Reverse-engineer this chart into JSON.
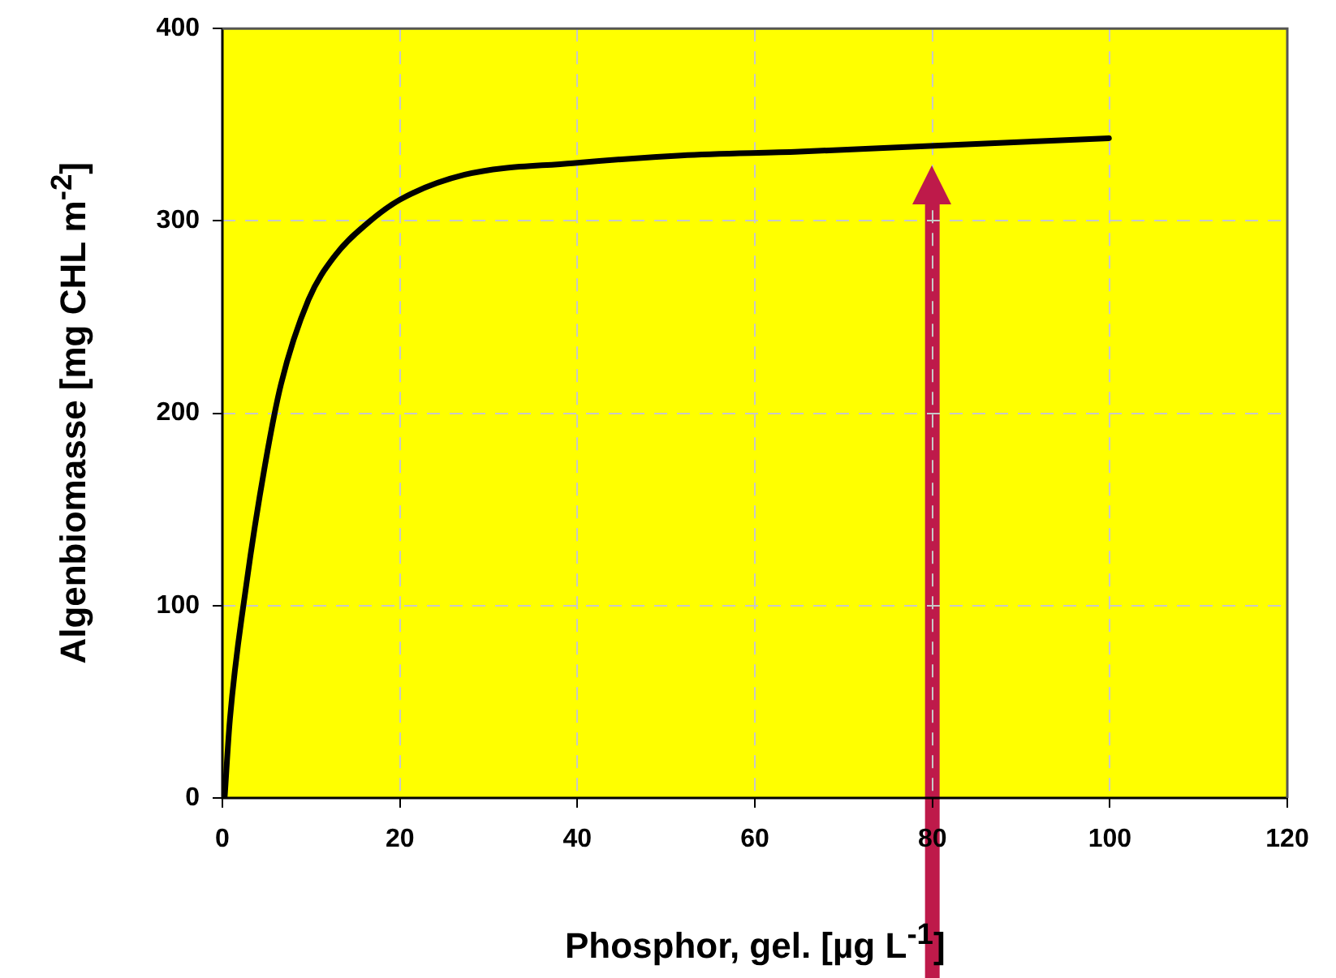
{
  "chart_data": {
    "type": "line",
    "xlabel": "Phosphor, gel. [µg L$^{-1}$]",
    "ylabel": "Algenbiomasse [mg CHL m$^{-2}$]",
    "xlim": [
      0,
      120
    ],
    "xticks": [
      0,
      20,
      40,
      60,
      80,
      100,
      120
    ],
    "ylim": [
      0,
      400
    ],
    "yticks": [
      0,
      100,
      200,
      300,
      400
    ],
    "grid": true,
    "legend": false,
    "marker": "none",
    "line_style": "solid",
    "series": [
      {
        "color": "#000000",
        "x": [
          0.25,
          0.85,
          2.7,
          4.8,
          6.6,
          9.7,
          12.7,
          16.4,
          20,
          27.3,
          39.5,
          51.7,
          65,
          79.7,
          99.9
        ],
        "values": [
          0,
          41,
          111,
          173,
          215,
          259,
          282,
          299,
          311,
          324,
          330,
          334,
          336,
          339,
          343
        ]
      }
    ],
    "ref_lines": [
      {
        "axis": "x",
        "value": 80,
        "color": "#be1a4a"
      }
    ]
  }
}
